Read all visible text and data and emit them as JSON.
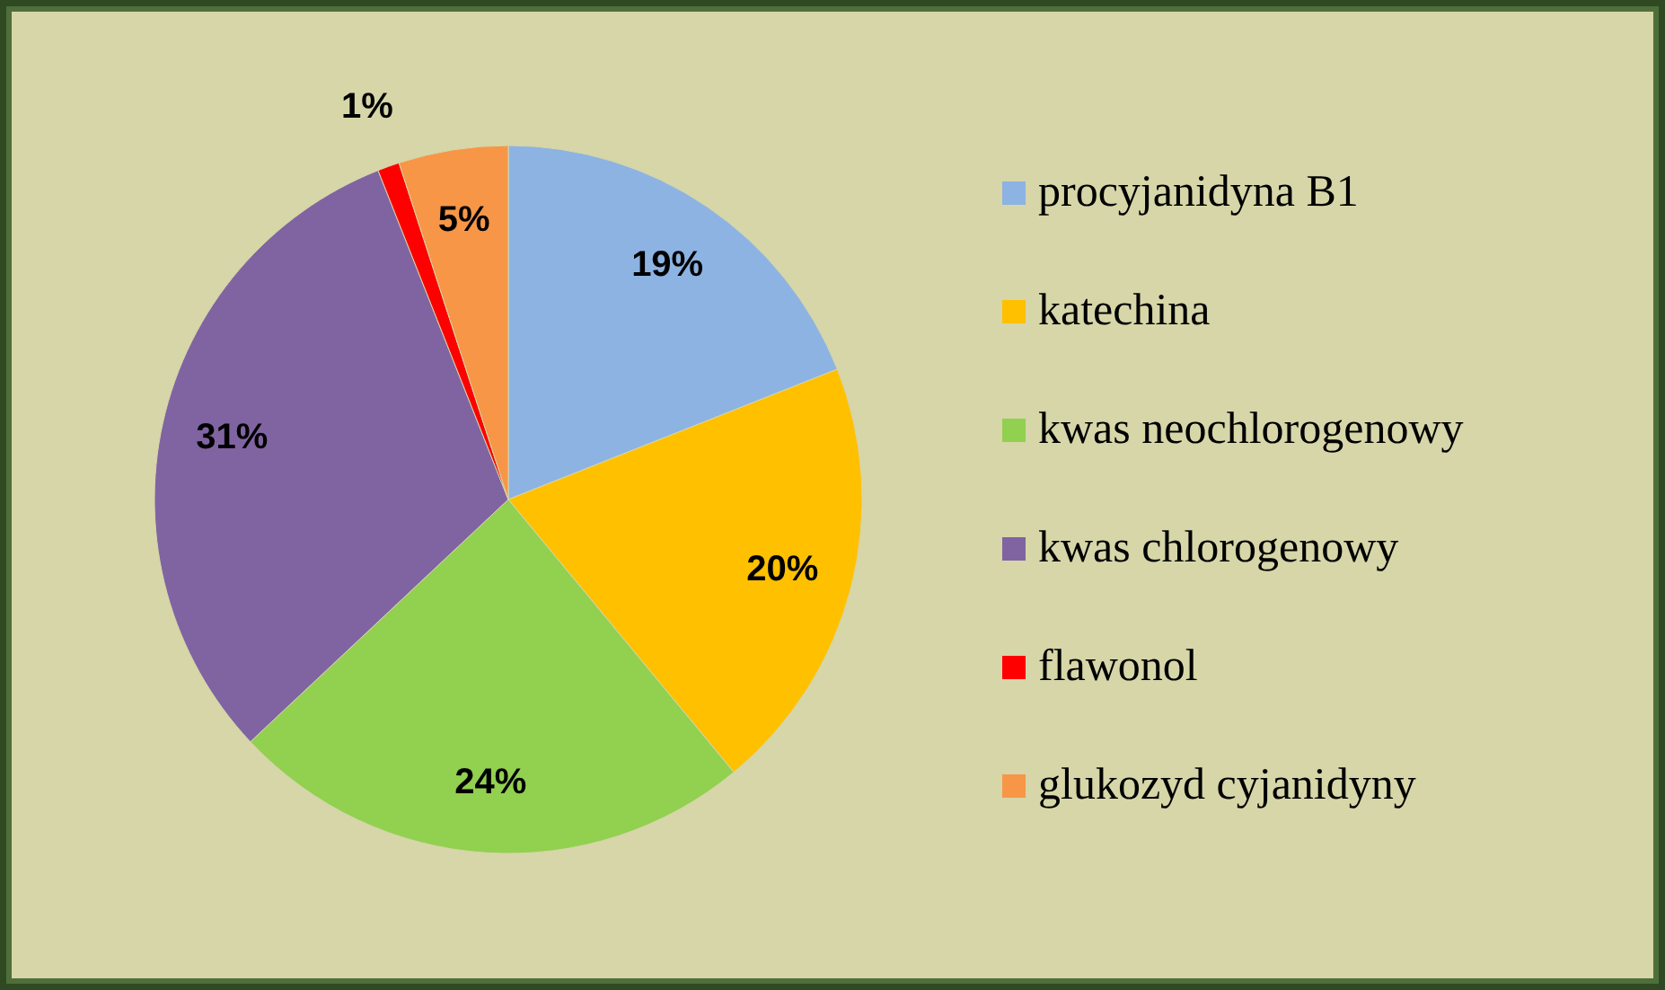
{
  "chart_data": {
    "type": "pie",
    "categories": [
      "procyjanidyna B1",
      "katechina",
      "kwas neochlorogenowy",
      "kwas chlorogenowy",
      "flawonol",
      "glukozyd cyjanidyny"
    ],
    "values": [
      19,
      20,
      24,
      31,
      1,
      5
    ],
    "colors": [
      "#8db3e2",
      "#ffc000",
      "#92d050",
      "#8064a2",
      "#ff0000",
      "#f79646"
    ],
    "value_labels": [
      "19%",
      "20%",
      "24%",
      "31%",
      "1%",
      "5%"
    ],
    "legend": "right"
  }
}
